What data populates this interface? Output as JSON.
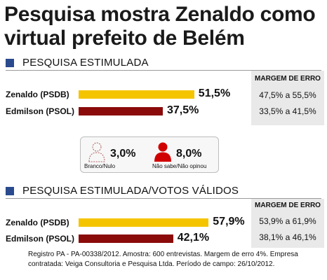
{
  "title": "Pesquisa mostra Zenaldo como virtual prefeito de Belém",
  "colors": {
    "zenaldo": "#f5c400",
    "edmilson": "#8b0a0a",
    "accent_square": "#2a4a8e",
    "nao_sabe_icon": "#d00000"
  },
  "sections": [
    {
      "heading": "PESQUISA ESTIMULADA",
      "margin_header": "MARGEM DE ERRO",
      "rows": [
        {
          "candidate": "Zenaldo (PSDB)",
          "value_label": "51,5%",
          "margin": "47,5% a 55,5%"
        },
        {
          "candidate": "Edmilson (PSOL)",
          "value_label": "37,5%",
          "margin": "33,5% a 41,5%"
        }
      ],
      "legend": [
        {
          "value_label": "3,0%",
          "label": "Branco/Nulo",
          "icon": "person-outline-icon"
        },
        {
          "value_label": "8,0%",
          "label": "Não sabe/Não opinou",
          "icon": "person-red-icon"
        }
      ]
    },
    {
      "heading": "PESQUISA ESTIMULADA/VOTOS VÁLIDOS",
      "margin_header": "MARGEM DE ERRO",
      "rows": [
        {
          "candidate": "Zenaldo (PSDB)",
          "value_label": "57,9%",
          "margin": "53,9% a 61,9%"
        },
        {
          "candidate": "Edmilson (PSOL)",
          "value_label": "42,1%",
          "margin": "38,1% a 46,1%"
        }
      ]
    }
  ],
  "chart_data": [
    {
      "type": "bar",
      "title": "PESQUISA ESTIMULADA",
      "categories": [
        "Zenaldo (PSDB)",
        "Edmilson (PSOL)",
        "Branco/Nulo",
        "Não sabe/Não opinou"
      ],
      "values": [
        51.5,
        37.5,
        3.0,
        8.0
      ],
      "margins_of_error": [
        [
          47.5,
          55.5
        ],
        [
          33.5,
          41.5
        ]
      ],
      "ylim": [
        0,
        100
      ]
    },
    {
      "type": "bar",
      "title": "PESQUISA ESTIMULADA/VOTOS VÁLIDOS",
      "categories": [
        "Zenaldo (PSDB)",
        "Edmilson (PSOL)"
      ],
      "values": [
        57.9,
        42.1
      ],
      "margins_of_error": [
        [
          53.9,
          61.9
        ],
        [
          38.1,
          46.1
        ]
      ],
      "ylim": [
        0,
        100
      ]
    }
  ],
  "footer": "Registro PA - PA-00338/2012. Amostra: 600 entrevistas. Margem de erro 4%. Empresa contratada: Veiga Consultoria e Pesquisa Ltda. Período de campo: 26/10/2012."
}
